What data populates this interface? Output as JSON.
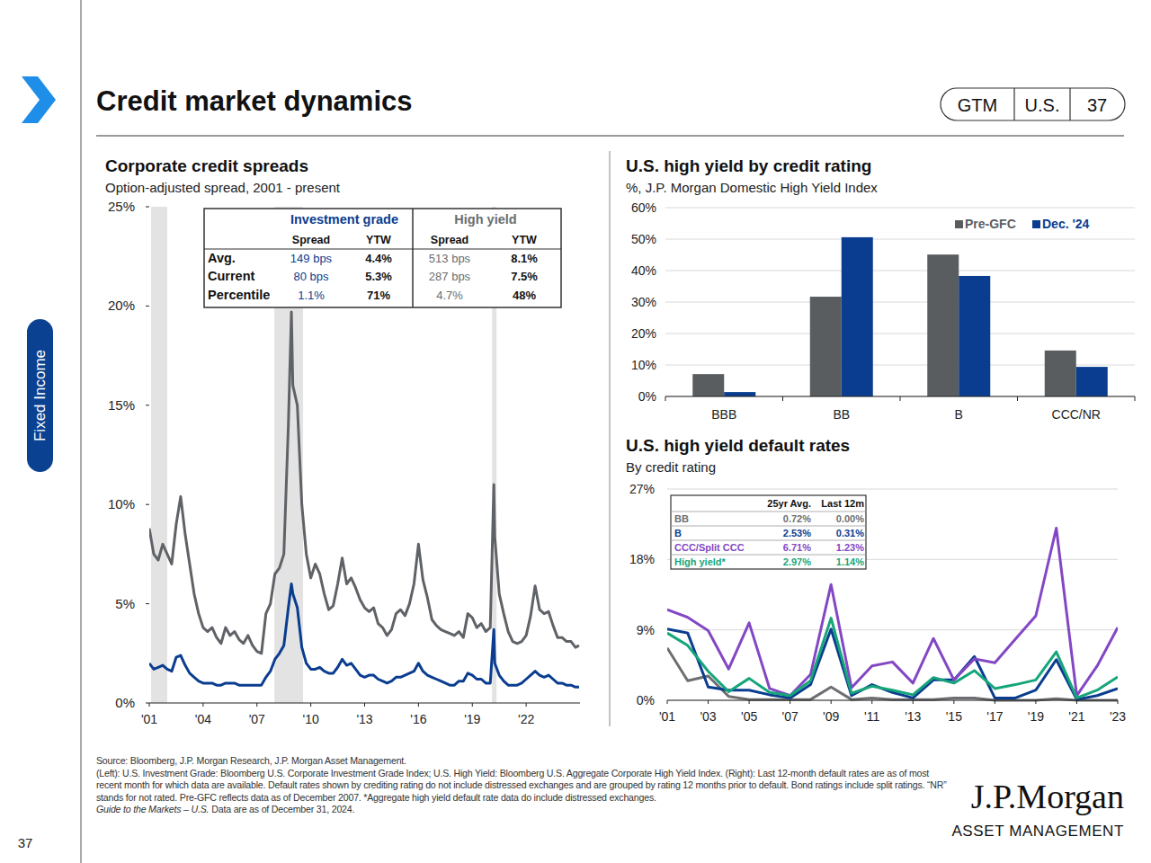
{
  "header": {
    "title": "Credit market dynamics",
    "badge": [
      "GTM",
      "U.S.",
      "37"
    ]
  },
  "sidebar": {
    "section": "Fixed Income",
    "page_number": "37"
  },
  "footer": {
    "source": "Source: Bloomberg, J.P. Morgan Research, J.P. Morgan Asset Management.",
    "notes": "(Left): U.S. Investment Grade: Bloomberg U.S. Corporate Investment Grade Index; U.S. High Yield: Bloomberg U.S. Aggregate Corporate High Yield Index. (Right): Last 12-month default rates are as of most recent month for which data are available. Default rates shown by crediting rating do not include distressed exchanges and are grouped by rating 12 months prior to default. Bond ratings include split ratings. “NR” stands for not rated. Pre-GFC reflects data as of December 2007. *Aggregate high yield default rate data do include distressed exchanges.",
    "guide": "Guide to the Markets – U.S.",
    "as_of": "Data are as of December 31, 2024."
  },
  "logo": {
    "name": "J.P.Morgan",
    "unit": "ASSET MANAGEMENT"
  },
  "chart_data": [
    {
      "type": "line",
      "title": "Corporate credit spreads",
      "subtitle": "Option-adjusted spread, 2001 - present",
      "x": [
        2001,
        2001.25,
        2001.5,
        2001.75,
        2002,
        2002.25,
        2002.5,
        2002.75,
        2003,
        2003.25,
        2003.5,
        2003.75,
        2004,
        2004.25,
        2004.5,
        2004.75,
        2005,
        2005.25,
        2005.5,
        2005.75,
        2006,
        2006.25,
        2006.5,
        2006.75,
        2007,
        2007.25,
        2007.5,
        2007.75,
        2008,
        2008.25,
        2008.5,
        2008.75,
        2008.92,
        2009,
        2009.25,
        2009.5,
        2009.75,
        2010,
        2010.25,
        2010.5,
        2010.75,
        2011,
        2011.25,
        2011.5,
        2011.75,
        2012,
        2012.25,
        2012.5,
        2012.75,
        2013,
        2013.25,
        2013.5,
        2013.75,
        2014,
        2014.25,
        2014.5,
        2014.75,
        2015,
        2015.25,
        2015.5,
        2015.75,
        2016,
        2016.25,
        2016.5,
        2016.75,
        2017,
        2017.25,
        2017.5,
        2017.75,
        2018,
        2018.25,
        2018.5,
        2018.75,
        2019,
        2019.25,
        2019.5,
        2019.75,
        2020,
        2020.2,
        2020.25,
        2020.5,
        2020.75,
        2021,
        2021.25,
        2021.5,
        2021.75,
        2022,
        2022.25,
        2022.5,
        2022.75,
        2023,
        2023.25,
        2023.5,
        2023.75,
        2024,
        2024.25,
        2024.5,
        2024.75,
        2024.95
      ],
      "xlim": [
        2001,
        2025
      ],
      "xticks": [
        {
          "value": 2001,
          "label": "'01"
        },
        {
          "value": 2004,
          "label": "'04"
        },
        {
          "value": 2007,
          "label": "'07"
        },
        {
          "value": 2010,
          "label": "'10"
        },
        {
          "value": 2013,
          "label": "'13"
        },
        {
          "value": 2016,
          "label": "'16"
        },
        {
          "value": 2019,
          "label": "'19"
        },
        {
          "value": 2022,
          "label": "'22"
        }
      ],
      "ylim": [
        0,
        25
      ],
      "yticks": [
        {
          "value": 0,
          "label": "0%"
        },
        {
          "value": 5,
          "label": "5%"
        },
        {
          "value": 10,
          "label": "10%"
        },
        {
          "value": 15,
          "label": "15%"
        },
        {
          "value": 20,
          "label": "20%"
        },
        {
          "value": 25,
          "label": "25%"
        }
      ],
      "grid": false,
      "series": [
        {
          "name": "Investment grade",
          "color": "#0a3d8f",
          "values": [
            2.0,
            1.7,
            1.8,
            1.9,
            1.7,
            1.6,
            2.3,
            2.4,
            1.9,
            1.5,
            1.3,
            1.1,
            1.0,
            1.0,
            1.0,
            0.9,
            0.9,
            1.0,
            1.0,
            1.0,
            0.9,
            0.9,
            0.9,
            0.9,
            0.9,
            0.9,
            1.3,
            1.6,
            2.2,
            2.5,
            2.9,
            4.8,
            6.0,
            5.5,
            4.8,
            2.8,
            2.0,
            1.7,
            1.7,
            1.8,
            1.6,
            1.5,
            1.5,
            1.8,
            2.2,
            1.9,
            2.0,
            1.7,
            1.4,
            1.3,
            1.4,
            1.4,
            1.2,
            1.1,
            1.0,
            1.1,
            1.3,
            1.3,
            1.4,
            1.5,
            1.6,
            2.0,
            1.6,
            1.4,
            1.3,
            1.2,
            1.1,
            1.0,
            0.9,
            0.9,
            1.1,
            1.1,
            1.5,
            1.4,
            1.2,
            1.2,
            1.0,
            1.0,
            3.7,
            2.0,
            1.4,
            1.1,
            0.9,
            0.9,
            0.9,
            1.0,
            1.2,
            1.4,
            1.6,
            1.4,
            1.3,
            1.4,
            1.2,
            1.0,
            1.0,
            0.9,
            0.9,
            0.8,
            0.8
          ]
        },
        {
          "name": "High yield",
          "color": "#5f6266",
          "values": [
            8.8,
            7.5,
            7.2,
            8.0,
            7.5,
            7.0,
            9.0,
            10.4,
            8.5,
            7.0,
            5.5,
            4.5,
            3.8,
            3.6,
            3.8,
            3.3,
            3.0,
            3.8,
            3.4,
            3.6,
            3.2,
            3.0,
            3.4,
            2.9,
            2.6,
            2.5,
            4.5,
            5.0,
            6.5,
            6.8,
            7.5,
            14.0,
            19.7,
            16.0,
            15.0,
            10.0,
            7.5,
            6.3,
            7.0,
            6.5,
            5.5,
            4.7,
            4.9,
            6.0,
            7.3,
            6.0,
            6.3,
            5.8,
            5.2,
            4.8,
            4.6,
            4.8,
            4.0,
            3.8,
            3.4,
            3.7,
            4.5,
            4.7,
            4.4,
            5.0,
            6.0,
            8.0,
            6.2,
            5.3,
            4.2,
            3.9,
            3.7,
            3.6,
            3.5,
            3.4,
            3.6,
            3.3,
            4.5,
            4.3,
            3.8,
            4.0,
            3.6,
            3.8,
            11.0,
            8.4,
            5.5,
            4.5,
            3.6,
            3.1,
            3.0,
            3.1,
            3.4,
            4.4,
            5.9,
            4.7,
            4.5,
            4.6,
            3.9,
            3.3,
            3.3,
            3.1,
            3.1,
            2.8,
            2.9
          ]
        }
      ],
      "recessions": [
        {
          "start": 2001.1,
          "end": 2002.0
        },
        {
          "start": 2007.97,
          "end": 2009.57
        },
        {
          "start": 2020.1,
          "end": 2020.35
        }
      ],
      "table": {
        "columns": [
          "Spread",
          "YTW",
          "Spread",
          "YTW"
        ],
        "rows": [
          {
            "label": "Avg.",
            "cells": [
              "149 bps",
              "4.4%",
              "513 bps",
              "8.1%"
            ]
          },
          {
            "label": "Current",
            "cells": [
              "80 bps",
              "5.3%",
              "287 bps",
              "7.5%"
            ]
          },
          {
            "label": "Percentile",
            "cells": [
              "1.1%",
              "71%",
              "4.7%",
              "48%"
            ]
          }
        ]
      }
    },
    {
      "type": "bar",
      "title": "U.S. high yield by credit rating",
      "subtitle": "%, J.P. Morgan Domestic High Yield Index",
      "categories": [
        "BBB",
        "BB",
        "B",
        "CCC/NR"
      ],
      "series": [
        {
          "name": "Pre-GFC",
          "color": "#5a5d60",
          "values": [
            7.1,
            31.7,
            45.1,
            14.6
          ]
        },
        {
          "name": "Dec. '24",
          "color": "#0a3d8f",
          "values": [
            1.4,
            50.6,
            38.3,
            9.4
          ]
        }
      ],
      "ylim": [
        0,
        60
      ],
      "yticks": [
        {
          "value": 0,
          "label": "0%"
        },
        {
          "value": 10,
          "label": "10%"
        },
        {
          "value": 20,
          "label": "20%"
        },
        {
          "value": 30,
          "label": "30%"
        },
        {
          "value": 40,
          "label": "40%"
        },
        {
          "value": 50,
          "label": "50%"
        },
        {
          "value": 60,
          "label": "60%"
        }
      ],
      "grid": true,
      "legend": "top-right"
    },
    {
      "type": "line",
      "title": "U.S. high yield default rates",
      "subtitle": "By credit rating",
      "x": [
        2001,
        2002,
        2003,
        2004,
        2005,
        2006,
        2007,
        2008,
        2009,
        2010,
        2011,
        2012,
        2013,
        2014,
        2015,
        2016,
        2017,
        2018,
        2019,
        2020,
        2021,
        2022,
        2023
      ],
      "xlim": [
        2001,
        2023
      ],
      "xticks": [
        {
          "value": 2001,
          "label": "'01"
        },
        {
          "value": 2003,
          "label": "'03"
        },
        {
          "value": 2005,
          "label": "'05"
        },
        {
          "value": 2007,
          "label": "'07"
        },
        {
          "value": 2009,
          "label": "'09"
        },
        {
          "value": 2011,
          "label": "'11"
        },
        {
          "value": 2013,
          "label": "'13"
        },
        {
          "value": 2015,
          "label": "'15"
        },
        {
          "value": 2017,
          "label": "'17"
        },
        {
          "value": 2019,
          "label": "'19"
        },
        {
          "value": 2021,
          "label": "'21"
        },
        {
          "value": 2023,
          "label": "'23"
        }
      ],
      "ylim": [
        0,
        27
      ],
      "yticks": [
        {
          "value": 0,
          "label": "0%"
        },
        {
          "value": 9,
          "label": "9%"
        },
        {
          "value": 18,
          "label": "18%"
        },
        {
          "value": 27,
          "label": "27%"
        }
      ],
      "grid": true,
      "series": [
        {
          "name": "BB",
          "color": "#6d6e71",
          "values": [
            6.7,
            2.5,
            3.1,
            0.5,
            0.1,
            0.1,
            0.1,
            0.1,
            1.7,
            0.1,
            0.3,
            0.1,
            0.1,
            0.1,
            0.3,
            0.3,
            0.0,
            0.0,
            0.0,
            0.2,
            0.0,
            0.0,
            0.0
          ]
        },
        {
          "name": "B",
          "color": "#0a3d8f",
          "values": [
            9.1,
            8.6,
            1.7,
            1.3,
            1.3,
            0.7,
            0.3,
            2.0,
            9.1,
            0.6,
            2.0,
            1.0,
            0.3,
            2.6,
            2.6,
            5.6,
            0.3,
            0.3,
            1.3,
            5.2,
            0.1,
            0.6,
            1.5
          ]
        },
        {
          "name": "CCC/Split CCC",
          "color": "#8447c4",
          "values": [
            11.6,
            10.6,
            8.9,
            4.0,
            9.9,
            1.5,
            0.6,
            3.3,
            14.8,
            1.6,
            4.4,
            4.9,
            2.2,
            7.9,
            2.6,
            5.3,
            4.8,
            7.8,
            10.8,
            22.0,
            0.6,
            4.4,
            9.3
          ]
        },
        {
          "name": "High yield*",
          "color": "#16a57a",
          "values": [
            8.6,
            7.0,
            3.7,
            1.1,
            2.8,
            1.0,
            0.6,
            2.5,
            10.5,
            0.9,
            1.8,
            1.3,
            0.7,
            2.9,
            2.2,
            3.8,
            1.5,
            2.0,
            2.6,
            6.2,
            0.3,
            1.3,
            3.0
          ]
        }
      ],
      "table": {
        "columns": [
          "25yr Avg.",
          "Last 12m"
        ],
        "rows": [
          [
            "0.72%",
            "0.00%"
          ],
          [
            "2.53%",
            "0.31%"
          ],
          [
            "6.71%",
            "1.23%"
          ],
          [
            "2.97%",
            "1.14%"
          ]
        ]
      }
    }
  ]
}
